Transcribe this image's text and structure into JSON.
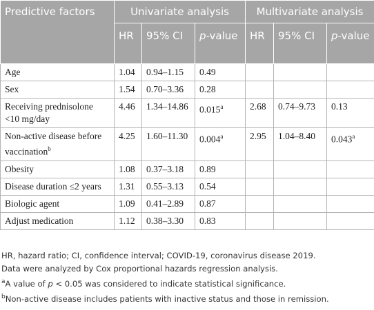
{
  "table": {
    "header_top": [
      "Predictive factors",
      "Univariate analysis",
      "Multivariate analysis"
    ],
    "header_sub": [
      "HR",
      "95% CI",
      {
        "parts": [
          "p",
          "-value"
        ]
      },
      "HR",
      "95% CI",
      {
        "parts": [
          "p",
          "-value"
        ]
      }
    ],
    "rows": [
      [
        "Age",
        "1.04",
        "0.94–1.15",
        "0.49",
        null,
        null,
        null
      ],
      [
        "Sex",
        "1.54",
        "0.70–3.36",
        "0.28",
        null,
        null,
        null
      ],
      [
        "Receiving prednisolone <10 mg/day",
        "4.46",
        "1.34–14.86",
        {
          "text": "0.015",
          "sup": "a"
        },
        "2.68",
        "0.74–9.73",
        "0.13"
      ],
      [
        {
          "text": "Non-active disease before vaccination",
          "sup": "b"
        },
        "4.25",
        "1.60–11.30",
        {
          "text": "0.004",
          "sup": "a"
        },
        "2.95",
        "1.04–8.40",
        {
          "text": "0.043",
          "sup": "a"
        }
      ],
      [
        "Obesity",
        "1.08",
        "0.37–3.18",
        "0.89",
        null,
        null,
        null
      ],
      [
        "Disease duration ≤2 years",
        "1.31",
        "0.55–3.13",
        "0.54",
        null,
        null,
        null
      ],
      [
        "Biologic agent",
        "1.09",
        "0.41–2.89",
        "0.87",
        null,
        null,
        null
      ],
      [
        "Adjust medication",
        "1.12",
        "0.38–3.30",
        "0.83",
        null,
        null,
        null
      ]
    ]
  },
  "footnotes": [
    {
      "parts": [
        "HR, hazard ratio; CI, confidence interval; COVID-19, coronavirus disease 2019."
      ]
    },
    {
      "parts": [
        "Data were analyzed by Cox proportional hazards regression analysis."
      ]
    },
    {
      "sup": "a",
      "parts": [
        "A value of ",
        "p",
        " < 0.05 was considered to indicate statistical significance."
      ]
    },
    {
      "sup": "b",
      "parts": [
        "Non-active disease includes patients with inactive status and those in remission."
      ]
    }
  ]
}
